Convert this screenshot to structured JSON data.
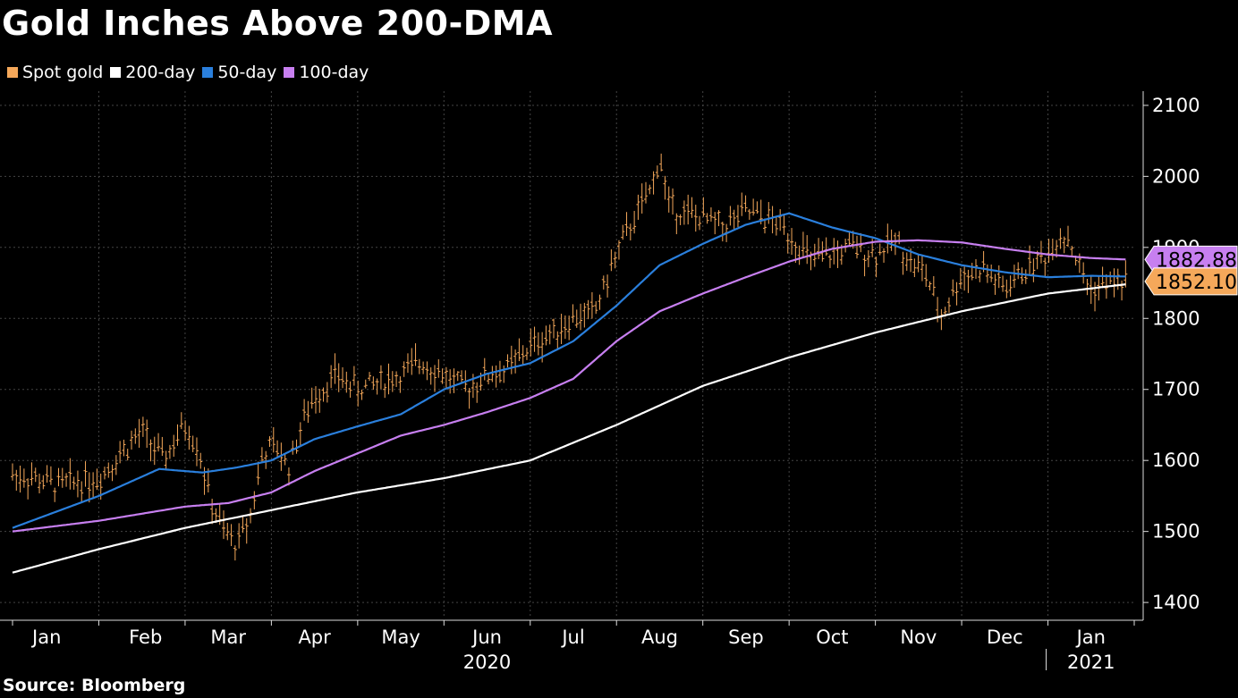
{
  "title": "Gold Inches Above 200-DMA",
  "source": "Source: Bloomberg",
  "chart_data": {
    "type": "line",
    "x_unit": "month",
    "x_range": [
      "2020-01-01",
      "2021-01-31"
    ],
    "ylim": [
      1380,
      2120
    ],
    "y_ticks": [
      1400,
      1500,
      1600,
      1700,
      1800,
      1900,
      2000,
      2100
    ],
    "grid": true,
    "legend_position": "top-left",
    "x_tick_labels": [
      {
        "label": "Jan",
        "month": 0.5
      },
      {
        "label": "Feb",
        "month": 1.5
      },
      {
        "label": "Mar",
        "month": 2.5
      },
      {
        "label": "Apr",
        "month": 3.5
      },
      {
        "label": "May",
        "month": 4.5
      },
      {
        "label": "Jun",
        "month": 5.5
      },
      {
        "label": "Jul",
        "month": 6.5
      },
      {
        "label": "Aug",
        "month": 7.5
      },
      {
        "label": "Sep",
        "month": 8.5
      },
      {
        "label": "Oct",
        "month": 9.5
      },
      {
        "label": "Nov",
        "month": 10.5
      },
      {
        "label": "Dec",
        "month": 11.5
      },
      {
        "label": "Jan",
        "month": 12.5
      }
    ],
    "year_labels": [
      {
        "label": "2020",
        "month": 5.5
      },
      {
        "label": "2021",
        "month": 12.5
      }
    ],
    "spot_gold": {
      "name": "Spot gold",
      "color": "#f5a85a",
      "x": [
        0.0,
        0.25,
        0.5,
        0.75,
        1.0,
        1.25,
        1.5,
        1.75,
        2.0,
        2.15,
        2.3,
        2.45,
        2.6,
        2.75,
        2.9,
        3.05,
        3.2,
        3.35,
        3.5,
        3.75,
        4.0,
        4.25,
        4.5,
        4.75,
        5.0,
        5.25,
        5.5,
        5.75,
        6.0,
        6.25,
        6.5,
        6.75,
        7.0,
        7.2,
        7.4,
        7.5,
        7.6,
        7.75,
        8.0,
        8.25,
        8.5,
        8.75,
        8.9,
        9.0,
        9.25,
        9.5,
        9.75,
        10.0,
        10.25,
        10.4,
        10.6,
        10.75,
        11.0,
        11.25,
        11.5,
        11.75,
        12.0,
        12.15,
        12.25,
        12.4,
        12.5,
        12.7,
        12.9
      ],
      "y": [
        1580,
        1575,
        1565,
        1570,
        1575,
        1610,
        1640,
        1600,
        1650,
        1620,
        1540,
        1500,
        1480,
        1520,
        1610,
        1620,
        1590,
        1650,
        1690,
        1720,
        1700,
        1710,
        1720,
        1740,
        1720,
        1700,
        1720,
        1730,
        1760,
        1780,
        1800,
        1810,
        1890,
        1940,
        1980,
        2030,
        1960,
        1950,
        1940,
        1930,
        1950,
        1940,
        1930,
        1920,
        1880,
        1890,
        1900,
        1890,
        1910,
        1880,
        1860,
        1800,
        1860,
        1870,
        1840,
        1870,
        1890,
        1920,
        1910,
        1860,
        1840,
        1850,
        1852.1
      ]
    },
    "series": [
      {
        "name": "200-day",
        "color": "#ffffff",
        "x": [
          0,
          1,
          2,
          3,
          4,
          5,
          6,
          7,
          8,
          9,
          10,
          11,
          12,
          12.9
        ],
        "y": [
          1442,
          1475,
          1505,
          1530,
          1555,
          1575,
          1600,
          1650,
          1705,
          1745,
          1780,
          1810,
          1835,
          1848
        ]
      },
      {
        "name": "50-day",
        "color": "#2a7fdc",
        "x": [
          0,
          1,
          1.7,
          2.2,
          2.6,
          3,
          3.5,
          4,
          4.5,
          5,
          5.5,
          6,
          6.5,
          7,
          7.5,
          8,
          8.5,
          9,
          9.5,
          10,
          10.5,
          11,
          11.5,
          12,
          12.5,
          12.9
        ],
        "y": [
          1505,
          1550,
          1588,
          1583,
          1590,
          1600,
          1630,
          1648,
          1665,
          1700,
          1722,
          1737,
          1768,
          1818,
          1875,
          1905,
          1932,
          1948,
          1928,
          1913,
          1890,
          1875,
          1865,
          1858,
          1860,
          1859
        ]
      },
      {
        "name": "100-day",
        "color": "#c77ff0",
        "x": [
          0,
          1,
          2,
          2.5,
          3,
          3.5,
          4,
          4.5,
          5,
          5.5,
          6,
          6.5,
          7,
          7.5,
          8,
          8.5,
          9,
          9.5,
          10,
          10.5,
          11,
          11.5,
          12,
          12.5,
          12.9
        ],
        "y": [
          1500,
          1515,
          1535,
          1540,
          1555,
          1585,
          1610,
          1635,
          1650,
          1668,
          1688,
          1715,
          1768,
          1810,
          1835,
          1858,
          1880,
          1898,
          1908,
          1910,
          1907,
          1898,
          1890,
          1885,
          1883
        ]
      }
    ],
    "end_labels": [
      {
        "series": "100-day",
        "label": "1882.88",
        "value": 1882.88,
        "color": "#c77ff0"
      },
      {
        "series": "Spot gold",
        "label": "1852.10",
        "value": 1852.1,
        "color": "#f5a85a"
      }
    ]
  }
}
